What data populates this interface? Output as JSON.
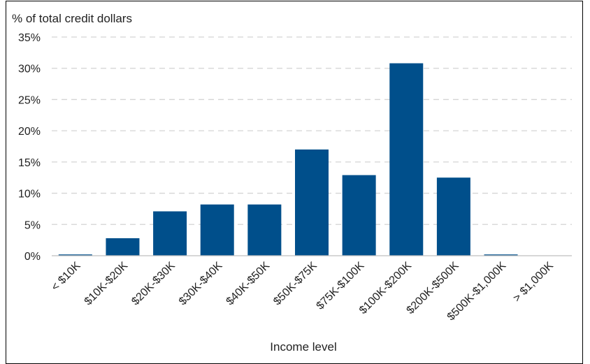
{
  "chart_data": {
    "type": "bar",
    "title": "% of total credit dollars",
    "xlabel": "Income level",
    "ylabel": "",
    "categories": [
      "< $10K",
      "$10K-$20K",
      "$20K-$30K",
      "$30K-$40K",
      "$40K-$50K",
      "$50K-$75K",
      "$75K-$100K",
      "$100K-$200K",
      "$200K-$500K",
      "$500K-$1,000K",
      "> $1,000K"
    ],
    "values": [
      0.2,
      2.8,
      7.1,
      8.2,
      8.2,
      17.0,
      12.9,
      30.8,
      12.5,
      0.2,
      0.0
    ],
    "ylim": [
      0,
      35
    ],
    "yticks": [
      0,
      5,
      10,
      15,
      20,
      25,
      30,
      35
    ],
    "ytick_labels": [
      "0%",
      "5%",
      "10%",
      "15%",
      "20%",
      "25%",
      "30%",
      "35%"
    ],
    "grid": true,
    "legend": "none",
    "bar_color": "#004f8b",
    "grid_color": "#d4d4d4"
  }
}
